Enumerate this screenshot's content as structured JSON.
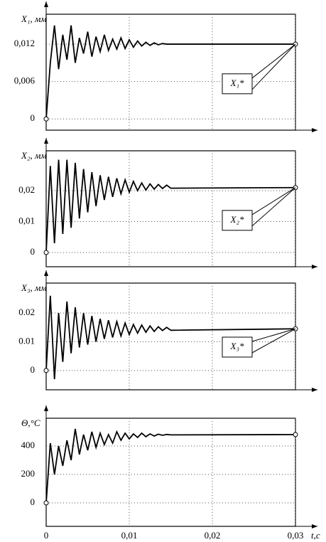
{
  "chart_data": [
    {
      "type": "line",
      "ylabel": "X₁, мм",
      "annotation": "X₁*",
      "color": "#000000",
      "grid": true,
      "x": [
        0,
        0.0005,
        0.001,
        0.0015,
        0.002,
        0.0025,
        0.003,
        0.0035,
        0.004,
        0.0045,
        0.005,
        0.0055,
        0.006,
        0.0065,
        0.007,
        0.0075,
        0.008,
        0.0085,
        0.009,
        0.0095,
        0.01,
        0.0105,
        0.011,
        0.0115,
        0.012,
        0.0125,
        0.013,
        0.0135,
        0.014,
        0.0145,
        0.015,
        0.03
      ],
      "values": [
        0,
        0.009,
        0.015,
        0.008,
        0.0135,
        0.0095,
        0.015,
        0.009,
        0.013,
        0.0105,
        0.014,
        0.01,
        0.0132,
        0.0108,
        0.0135,
        0.011,
        0.0128,
        0.0112,
        0.013,
        0.0113,
        0.0127,
        0.0115,
        0.0125,
        0.0117,
        0.0123,
        0.0118,
        0.0122,
        0.0119,
        0.0121,
        0.012,
        0.012,
        0.012
      ],
      "xlim": [
        0,
        0.03
      ],
      "xticks": [
        0,
        0.01,
        0.02,
        0.03
      ],
      "ylim": [
        -0.0018,
        0.0168
      ],
      "yticks": [
        0,
        {
          "value": 0.006,
          "label": "0,006"
        },
        {
          "value": 0.012,
          "label": "0,012"
        }
      ]
    },
    {
      "type": "line",
      "ylabel": "X₂, мм",
      "annotation": "X₂*",
      "color": "#000000",
      "grid": true,
      "x": [
        0,
        0.0005,
        0.001,
        0.0015,
        0.002,
        0.0025,
        0.003,
        0.0035,
        0.004,
        0.0045,
        0.005,
        0.0055,
        0.006,
        0.0065,
        0.007,
        0.0075,
        0.008,
        0.0085,
        0.009,
        0.0095,
        0.01,
        0.0105,
        0.011,
        0.0115,
        0.012,
        0.0125,
        0.013,
        0.0135,
        0.014,
        0.0145,
        0.015,
        0.03
      ],
      "values": [
        0,
        0.028,
        0.003,
        0.03,
        0.006,
        0.03,
        0.008,
        0.029,
        0.011,
        0.027,
        0.013,
        0.026,
        0.015,
        0.025,
        0.017,
        0.0245,
        0.018,
        0.024,
        0.019,
        0.0235,
        0.0195,
        0.023,
        0.02,
        0.0225,
        0.0202,
        0.0222,
        0.0205,
        0.022,
        0.0207,
        0.0218,
        0.0208,
        0.021
      ],
      "xlim": [
        0,
        0.03
      ],
      "xticks": [
        0,
        0.01,
        0.02,
        0.03
      ],
      "ylim": [
        -0.0046,
        0.0329
      ],
      "yticks": [
        0,
        {
          "value": 0.01,
          "label": "0,01"
        },
        {
          "value": 0.02,
          "label": "0,02"
        }
      ]
    },
    {
      "type": "line",
      "ylabel": "X₃, мм",
      "annotation": "X₃*",
      "color": "#000000",
      "grid": true,
      "x": [
        0,
        0.0005,
        0.001,
        0.0015,
        0.002,
        0.0025,
        0.003,
        0.0035,
        0.004,
        0.0045,
        0.005,
        0.0055,
        0.006,
        0.0065,
        0.007,
        0.0075,
        0.008,
        0.0085,
        0.009,
        0.0095,
        0.01,
        0.0105,
        0.011,
        0.0115,
        0.012,
        0.0125,
        0.013,
        0.0135,
        0.014,
        0.0145,
        0.015,
        0.03
      ],
      "values": [
        0,
        0.026,
        -0.003,
        0.02,
        0.003,
        0.024,
        0.006,
        0.022,
        0.008,
        0.02,
        0.009,
        0.019,
        0.01,
        0.018,
        0.011,
        0.0175,
        0.0115,
        0.017,
        0.012,
        0.0165,
        0.0125,
        0.016,
        0.013,
        0.0158,
        0.0133,
        0.0155,
        0.0136,
        0.0152,
        0.0139,
        0.015,
        0.014,
        0.0145
      ],
      "xlim": [
        0,
        0.03
      ],
      "xticks": [
        0,
        0.01,
        0.02,
        0.03
      ],
      "ylim": [
        -0.0067,
        0.0304
      ],
      "yticks": [
        0,
        0.01,
        0.02
      ]
    },
    {
      "type": "line",
      "ylabel": "Θ,°C",
      "xlabel": "t,c",
      "color": "#000000",
      "grid": true,
      "x": [
        0,
        0.0005,
        0.001,
        0.0015,
        0.002,
        0.0025,
        0.003,
        0.0035,
        0.004,
        0.0045,
        0.005,
        0.0055,
        0.006,
        0.0065,
        0.007,
        0.0075,
        0.008,
        0.0085,
        0.009,
        0.0095,
        0.01,
        0.0105,
        0.011,
        0.0115,
        0.012,
        0.0125,
        0.013,
        0.0135,
        0.014,
        0.0145,
        0.015,
        0.03
      ],
      "values": [
        0,
        420,
        200,
        400,
        260,
        440,
        300,
        520,
        340,
        480,
        370,
        500,
        390,
        490,
        410,
        480,
        420,
        500,
        440,
        490,
        450,
        485,
        460,
        490,
        465,
        485,
        470,
        483,
        475,
        481,
        478,
        480
      ],
      "xlim": [
        0,
        0.03
      ],
      "xticks": [
        0,
        {
          "value": 0.01,
          "label": "0,01"
        },
        {
          "value": 0.02,
          "label": "0,02"
        },
        {
          "value": 0.03,
          "label": "0,03"
        }
      ],
      "ylim": [
        -165,
        595
      ],
      "yticks": [
        0,
        200,
        400
      ]
    }
  ]
}
